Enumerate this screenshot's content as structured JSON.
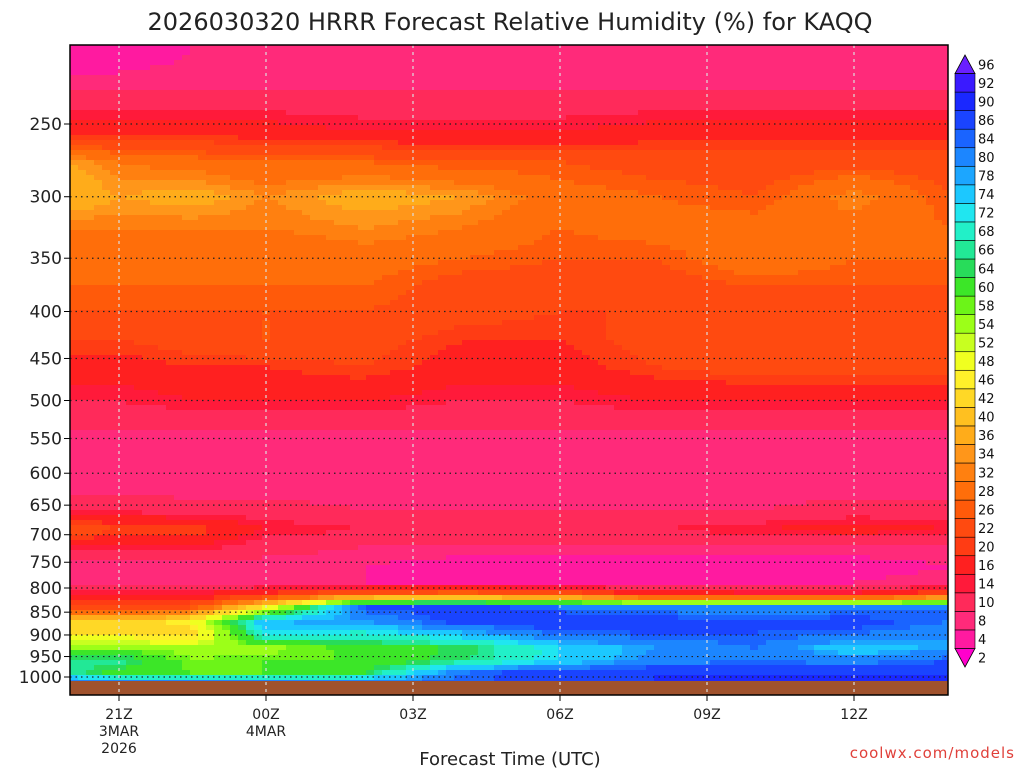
{
  "chart_data": {
    "type": "heatmap",
    "title": "2026030320 HRRR Forecast Relative Humidity (%) for KAQQ",
    "xlabel": "Forecast Time (UTC)",
    "ylabel": "",
    "credit": "coolwx.com/models",
    "y_scale": "log-pressure",
    "y_ticks": [
      250,
      300,
      350,
      400,
      450,
      500,
      550,
      600,
      650,
      700,
      750,
      800,
      850,
      900,
      950,
      1000
    ],
    "ylim_hPa": [
      200,
      1035
    ],
    "xlim_hours": [
      -1,
      17
    ],
    "x_ticks": [
      {
        "hour": 0,
        "lines": [
          "21Z",
          "3MAR",
          "2026"
        ]
      },
      {
        "hour": 3,
        "lines": [
          "00Z",
          "4MAR"
        ]
      },
      {
        "hour": 6,
        "lines": [
          "03Z"
        ]
      },
      {
        "hour": 9,
        "lines": [
          "06Z"
        ]
      },
      {
        "hour": 12,
        "lines": [
          "09Z"
        ]
      },
      {
        "hour": 15,
        "lines": [
          "12Z"
        ]
      }
    ],
    "grid": true,
    "colorbar": {
      "placement": "right",
      "levels": [
        2,
        4,
        8,
        10,
        14,
        16,
        20,
        22,
        26,
        28,
        32,
        34,
        36,
        40,
        42,
        46,
        48,
        52,
        54,
        58,
        60,
        64,
        66,
        68,
        72,
        74,
        78,
        80,
        84,
        86,
        90,
        92,
        96
      ],
      "colors": [
        "#ff00cc",
        "#ff1aa0",
        "#ff2a7a",
        "#ff2a5a",
        "#ff1a3a",
        "#ff2020",
        "#ff3c14",
        "#ff4a10",
        "#ff5a0a",
        "#ff6e0a",
        "#ff8010",
        "#ff961a",
        "#ffac1a",
        "#ffc020",
        "#ffd826",
        "#fff02a",
        "#f0ff20",
        "#c8ff20",
        "#9cff18",
        "#6cf418",
        "#3ce628",
        "#28dc5a",
        "#22e896",
        "#22f0c8",
        "#20e6f0",
        "#1cc8ff",
        "#1ca6ff",
        "#1c86ff",
        "#1a64ff",
        "#1a44ff",
        "#1a28ff",
        "#3a1aff",
        "#6a20ff"
      ]
    },
    "times_hours": [
      -1,
      0,
      1.5,
      3,
      5,
      7,
      9,
      11,
      13,
      15,
      17
    ],
    "pressure_levels_hPa": [
      210,
      230,
      255,
      275,
      300,
      325,
      350,
      375,
      400,
      430,
      460,
      500,
      540,
      580,
      620,
      660,
      690,
      720,
      760,
      790,
      815,
      840,
      870,
      900,
      930,
      960,
      990,
      1020
    ],
    "rh_percent": [
      [
        5,
        6,
        8,
        9,
        9,
        8,
        8,
        9,
        8,
        9,
        9
      ],
      [
        10,
        10,
        10,
        10,
        10,
        10,
        10,
        10,
        10,
        10,
        10
      ],
      [
        18,
        18,
        18,
        18,
        16,
        16,
        16,
        18,
        18,
        18,
        18
      ],
      [
        36,
        32,
        30,
        28,
        28,
        26,
        26,
        24,
        24,
        24,
        24
      ],
      [
        40,
        36,
        38,
        34,
        38,
        36,
        30,
        28,
        26,
        34,
        26
      ],
      [
        32,
        32,
        32,
        32,
        34,
        32,
        28,
        30,
        30,
        30,
        28
      ],
      [
        30,
        30,
        30,
        28,
        30,
        28,
        26,
        26,
        32,
        28,
        28
      ],
      [
        28,
        28,
        28,
        28,
        28,
        24,
        24,
        24,
        26,
        26,
        26
      ],
      [
        26,
        26,
        26,
        26,
        26,
        24,
        22,
        22,
        24,
        24,
        24
      ],
      [
        22,
        22,
        24,
        26,
        24,
        20,
        20,
        24,
        26,
        26,
        26
      ],
      [
        18,
        18,
        20,
        20,
        22,
        18,
        18,
        22,
        24,
        24,
        24
      ],
      [
        14,
        14,
        16,
        16,
        16,
        14,
        14,
        16,
        16,
        16,
        16
      ],
      [
        10,
        10,
        10,
        10,
        10,
        10,
        10,
        10,
        10,
        10,
        10
      ],
      [
        8,
        8,
        8,
        8,
        8,
        8,
        8,
        8,
        8,
        8,
        8
      ],
      [
        8,
        8,
        8,
        8,
        8,
        8,
        8,
        8,
        8,
        8,
        8
      ],
      [
        14,
        14,
        12,
        12,
        10,
        10,
        10,
        10,
        10,
        12,
        12
      ],
      [
        26,
        22,
        22,
        16,
        14,
        12,
        12,
        14,
        16,
        18,
        16
      ],
      [
        16,
        16,
        16,
        12,
        10,
        10,
        10,
        10,
        10,
        10,
        10
      ],
      [
        8,
        8,
        8,
        8,
        8,
        6,
        6,
        6,
        6,
        6,
        8
      ],
      [
        10,
        10,
        10,
        10,
        8,
        8,
        8,
        8,
        8,
        8,
        10
      ],
      [
        16,
        16,
        16,
        22,
        30,
        32,
        28,
        20,
        18,
        18,
        26
      ],
      [
        24,
        24,
        26,
        48,
        86,
        88,
        84,
        82,
        82,
        82,
        84
      ],
      [
        42,
        42,
        48,
        78,
        80,
        88,
        90,
        88,
        86,
        88,
        84
      ],
      [
        46,
        46,
        44,
        72,
        70,
        76,
        84,
        86,
        86,
        84,
        80
      ],
      [
        58,
        58,
        56,
        56,
        62,
        64,
        74,
        80,
        84,
        74,
        80
      ],
      [
        66,
        68,
        58,
        60,
        60,
        66,
        74,
        82,
        84,
        82,
        86
      ],
      [
        68,
        62,
        60,
        60,
        64,
        84,
        90,
        90,
        90,
        90,
        90
      ],
      [
        86,
        86,
        86,
        86,
        86,
        86,
        86,
        90,
        92,
        92,
        92
      ]
    ],
    "ground_below_hPa": 1010
  }
}
